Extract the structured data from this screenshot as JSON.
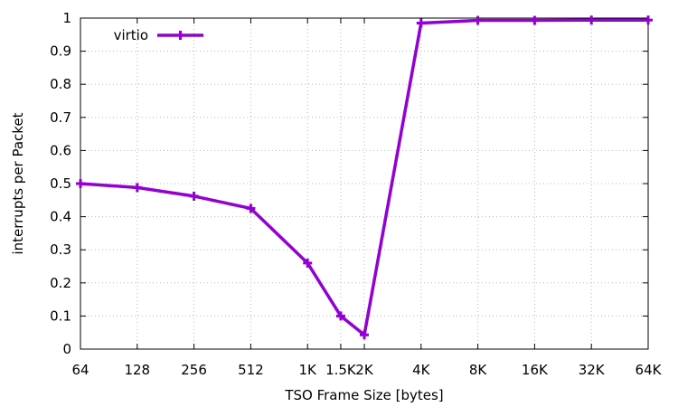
{
  "chart_data": {
    "type": "line",
    "xscale": "log2",
    "x": [
      64,
      128,
      256,
      512,
      1024,
      1536,
      2048,
      4096,
      8192,
      16384,
      32768,
      65536
    ],
    "x_tick_labels": [
      "64",
      "128",
      "256",
      "512",
      "1K",
      "1.5K",
      "2K",
      "4K",
      "8K",
      "16K",
      "32K",
      "64K"
    ],
    "xlabel": "TSO Frame Size [bytes]",
    "ylabel": "interrupts per Packet",
    "ylim": [
      0,
      1
    ],
    "yticks": [
      "0",
      "0.1",
      "0.2",
      "0.3",
      "0.4",
      "0.5",
      "0.6",
      "0.7",
      "0.8",
      "0.9",
      "1"
    ],
    "grid": true,
    "legend": "top-left",
    "series": [
      {
        "name": "virtio",
        "color": "#9400d3",
        "marker": "plus",
        "values": [
          0.5,
          0.488,
          0.462,
          0.425,
          0.26,
          0.1,
          0.043,
          0.985,
          0.993,
          0.993,
          0.994,
          0.994
        ]
      }
    ]
  }
}
